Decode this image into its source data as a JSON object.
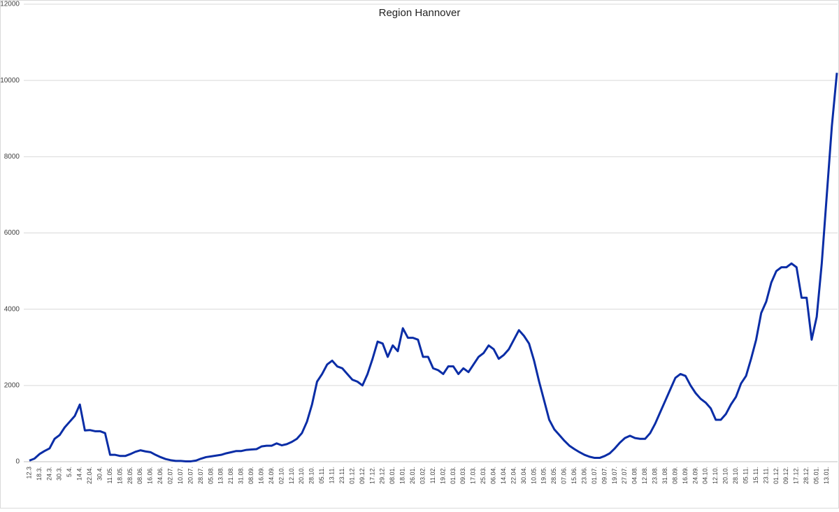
{
  "chart_data": {
    "type": "line",
    "title": "Region Hannover",
    "categories": [
      "12.3",
      null,
      "18.3.",
      null,
      "24.3.",
      null,
      "30.3.",
      null,
      "5.4.",
      null,
      "14.4.",
      null,
      "22.04.",
      null,
      "30.4.",
      null,
      "11.05.",
      null,
      "18.05.",
      null,
      "28.05.",
      null,
      "08.06.",
      null,
      "16.06.",
      null,
      "24.06.",
      null,
      "02.07.",
      null,
      "10.07.",
      null,
      "20.07.",
      null,
      "28.07.",
      null,
      "05.08.",
      null,
      "13.08.",
      null,
      "21.08.",
      null,
      "31.08.",
      null,
      "08.09.",
      null,
      "16.09.",
      null,
      "24.09.",
      null,
      "02.10.",
      null,
      "12.10.",
      null,
      "20.10.",
      null,
      "28.10.",
      null,
      "05.11.",
      null,
      "13.11.",
      null,
      "23.11.",
      null,
      "01.12.",
      null,
      "09.12.",
      null,
      "17.12.",
      null,
      "29.12.",
      null,
      "08.01.",
      null,
      "18.01.",
      null,
      "26.01.",
      null,
      "03.02.",
      null,
      "11.02.",
      null,
      "19.02.",
      null,
      "01.03.",
      null,
      "09.03.",
      null,
      "17.03.",
      null,
      "25.03.",
      null,
      "06.04.",
      null,
      "14.04.",
      null,
      "22.04.",
      null,
      "30.04.",
      null,
      "10.05.",
      null,
      "19.05.",
      null,
      "28.05.",
      null,
      "07.06.",
      null,
      "15.06.",
      null,
      "23.06.",
      null,
      "01.07.",
      null,
      "09.07.",
      null,
      "19.07.",
      null,
      "27.07.",
      null,
      "04.08.",
      null,
      "12.08.",
      null,
      "23.08.",
      null,
      "31.08.",
      null,
      "08.09.",
      null,
      "16.09.",
      null,
      "24.09.",
      null,
      "04.10.",
      null,
      "12.10.",
      null,
      "20.10.",
      null,
      "28.10.",
      null,
      "05.11.",
      null,
      "15.11.",
      null,
      "23.11.",
      null,
      "01.12.",
      null,
      "09.12.",
      null,
      "17.12.",
      null,
      "28.12.",
      null,
      "05.01.",
      null,
      "13.01.",
      null,
      null
    ],
    "series": [
      {
        "name": "Region Hannover",
        "color": "#0a2da6",
        "values": [
          30,
          80,
          200,
          280,
          350,
          600,
          700,
          900,
          1050,
          1200,
          1500,
          820,
          830,
          800,
          800,
          750,
          180,
          180,
          150,
          150,
          200,
          260,
          300,
          270,
          250,
          180,
          120,
          70,
          40,
          20,
          20,
          10,
          10,
          30,
          80,
          120,
          140,
          160,
          180,
          220,
          250,
          280,
          280,
          310,
          320,
          330,
          400,
          420,
          420,
          480,
          430,
          460,
          520,
          600,
          750,
          1050,
          1500,
          2100,
          2300,
          2550,
          2650,
          2500,
          2450,
          2300,
          2150,
          2100,
          2000,
          2300,
          2700,
          3150,
          3100,
          2750,
          3050,
          2900,
          3500,
          3250,
          3250,
          3200,
          2750,
          2750,
          2450,
          2400,
          2300,
          2500,
          2500,
          2300,
          2450,
          2350,
          2550,
          2750,
          2850,
          3050,
          2950,
          2700,
          2800,
          2950,
          3200,
          3450,
          3300,
          3100,
          2650,
          2100,
          1600,
          1100,
          850,
          700,
          550,
          420,
          330,
          250,
          180,
          130,
          100,
          100,
          150,
          220,
          350,
          500,
          620,
          680,
          620,
          600,
          600,
          750,
          1000,
          1300,
          1600,
          1900,
          2200,
          2300,
          2250,
          2000,
          1800,
          1650,
          1550,
          1400,
          1100,
          1100,
          1250,
          1500,
          1700,
          2050,
          2250,
          2700,
          3200,
          3900,
          4200,
          4700,
          5000,
          5100,
          5100,
          5200,
          5100,
          4300,
          4300,
          3200,
          3800,
          5200,
          7000,
          8800,
          10200
        ]
      }
    ],
    "ylim": [
      0,
      12000
    ],
    "yticks": [
      0,
      2000,
      4000,
      6000,
      8000,
      10000,
      12000
    ],
    "grid": true
  }
}
